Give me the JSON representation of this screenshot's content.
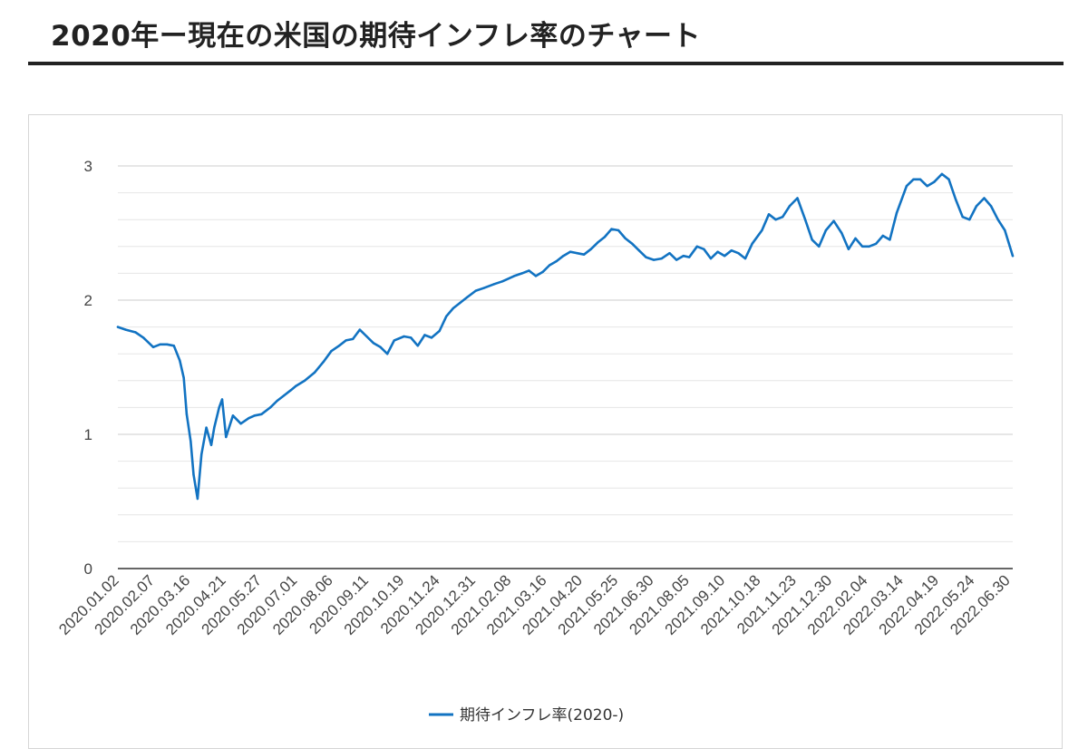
{
  "header": {
    "title": "2020年ー現在の米国の期待インフレ率のチャート"
  },
  "colors": {
    "series": "#1273c2",
    "major_grid": "#cccccc",
    "minor_grid": "#e6e6e6",
    "baseline": "#333333",
    "rule": "#222222"
  },
  "chart_data": {
    "type": "line",
    "title": "",
    "xlabel": "",
    "ylabel": "",
    "ylim": [
      0,
      3
    ],
    "yticks": [
      "0",
      "1",
      "2",
      "3"
    ],
    "grid": true,
    "legend_position": "bottom",
    "x_tick_labels": [
      "2020.01.02",
      "2020.02.07",
      "2020.03.16",
      "2020.04.21",
      "2020.05.27",
      "2020.07.01",
      "2020.08.06",
      "2020.09.11",
      "2020.10.19",
      "2020.11.24",
      "2020.12.31",
      "2021.02.08",
      "2021.03.16",
      "2021.04.20",
      "2021.05.25",
      "2021.06.30",
      "2021.08.05",
      "2021.09.10",
      "2021.10.18",
      "2021.11.23",
      "2021.12.30",
      "2022.02.04",
      "2022.03.14",
      "2022.04.19",
      "2022.05.24",
      "2022.06.30"
    ],
    "series": [
      {
        "name": "期待インフレ率(2020-)",
        "x": [
          "2020.01.02",
          "2020.01.10",
          "2020.01.20",
          "2020.01.28",
          "2020.02.07",
          "2020.02.14",
          "2020.02.21",
          "2020.02.28",
          "2020.03.05",
          "2020.03.09",
          "2020.03.12",
          "2020.03.16",
          "2020.03.19",
          "2020.03.23",
          "2020.03.27",
          "2020.04.01",
          "2020.04.06",
          "2020.04.09",
          "2020.04.14",
          "2020.04.17",
          "2020.04.21",
          "2020.04.28",
          "2020.05.06",
          "2020.05.14",
          "2020.05.20",
          "2020.05.27",
          "2020.06.05",
          "2020.06.12",
          "2020.06.19",
          "2020.06.26",
          "2020.07.01",
          "2020.07.10",
          "2020.07.20",
          "2020.07.29",
          "2020.08.06",
          "2020.08.14",
          "2020.08.21",
          "2020.08.28",
          "2020.09.04",
          "2020.09.11",
          "2020.09.18",
          "2020.09.25",
          "2020.10.02",
          "2020.10.09",
          "2020.10.19",
          "2020.10.26",
          "2020.11.02",
          "2020.11.09",
          "2020.11.16",
          "2020.11.24",
          "2020.12.01",
          "2020.12.08",
          "2020.12.15",
          "2020.12.22",
          "2020.12.31",
          "2021.01.08",
          "2021.01.19",
          "2021.01.27",
          "2021.02.08",
          "2021.02.16",
          "2021.02.23",
          "2021.03.02",
          "2021.03.09",
          "2021.03.16",
          "2021.03.23",
          "2021.03.30",
          "2021.04.06",
          "2021.04.13",
          "2021.04.20",
          "2021.04.27",
          "2021.05.04",
          "2021.05.11",
          "2021.05.18",
          "2021.05.25",
          "2021.06.01",
          "2021.06.08",
          "2021.06.15",
          "2021.06.22",
          "2021.06.30",
          "2021.07.08",
          "2021.07.16",
          "2021.07.23",
          "2021.07.30",
          "2021.08.05",
          "2021.08.13",
          "2021.08.20",
          "2021.08.27",
          "2021.09.03",
          "2021.09.10",
          "2021.09.17",
          "2021.09.24",
          "2021.10.01",
          "2021.10.08",
          "2021.10.18",
          "2021.10.25",
          "2021.11.01",
          "2021.11.08",
          "2021.11.15",
          "2021.11.23",
          "2021.12.01",
          "2021.12.08",
          "2021.12.15",
          "2021.12.22",
          "2021.12.30",
          "2022.01.07",
          "2022.01.14",
          "2022.01.21",
          "2022.01.28",
          "2022.02.04",
          "2022.02.11",
          "2022.02.18",
          "2022.02.25",
          "2022.03.04",
          "2022.03.14",
          "2022.03.21",
          "2022.03.28",
          "2022.04.04",
          "2022.04.11",
          "2022.04.19",
          "2022.04.26",
          "2022.05.03",
          "2022.05.10",
          "2022.05.17",
          "2022.05.24",
          "2022.06.01",
          "2022.06.08",
          "2022.06.15",
          "2022.06.22",
          "2022.06.30"
        ],
        "values": [
          1.8,
          1.78,
          1.76,
          1.72,
          1.65,
          1.67,
          1.67,
          1.66,
          1.55,
          1.42,
          1.15,
          0.95,
          0.7,
          0.52,
          0.85,
          1.05,
          0.92,
          1.05,
          1.2,
          1.26,
          0.98,
          1.14,
          1.08,
          1.12,
          1.14,
          1.15,
          1.2,
          1.25,
          1.29,
          1.33,
          1.36,
          1.4,
          1.46,
          1.54,
          1.62,
          1.66,
          1.7,
          1.71,
          1.78,
          1.73,
          1.68,
          1.65,
          1.6,
          1.7,
          1.73,
          1.72,
          1.66,
          1.74,
          1.72,
          1.77,
          1.88,
          1.94,
          1.98,
          2.02,
          2.07,
          2.09,
          2.12,
          2.14,
          2.18,
          2.2,
          2.22,
          2.18,
          2.21,
          2.26,
          2.29,
          2.33,
          2.36,
          2.35,
          2.34,
          2.38,
          2.43,
          2.47,
          2.53,
          2.52,
          2.46,
          2.42,
          2.37,
          2.32,
          2.3,
          2.31,
          2.35,
          2.3,
          2.33,
          2.32,
          2.4,
          2.38,
          2.31,
          2.36,
          2.33,
          2.37,
          2.35,
          2.31,
          2.42,
          2.52,
          2.64,
          2.6,
          2.62,
          2.7,
          2.76,
          2.6,
          2.45,
          2.4,
          2.52,
          2.59,
          2.5,
          2.38,
          2.46,
          2.4,
          2.4,
          2.42,
          2.48,
          2.45,
          2.65,
          2.85,
          2.9,
          2.9,
          2.85,
          2.88,
          2.94,
          2.9,
          2.75,
          2.62,
          2.6,
          2.7,
          2.76,
          2.7,
          2.6,
          2.52,
          2.33
        ]
      }
    ]
  }
}
